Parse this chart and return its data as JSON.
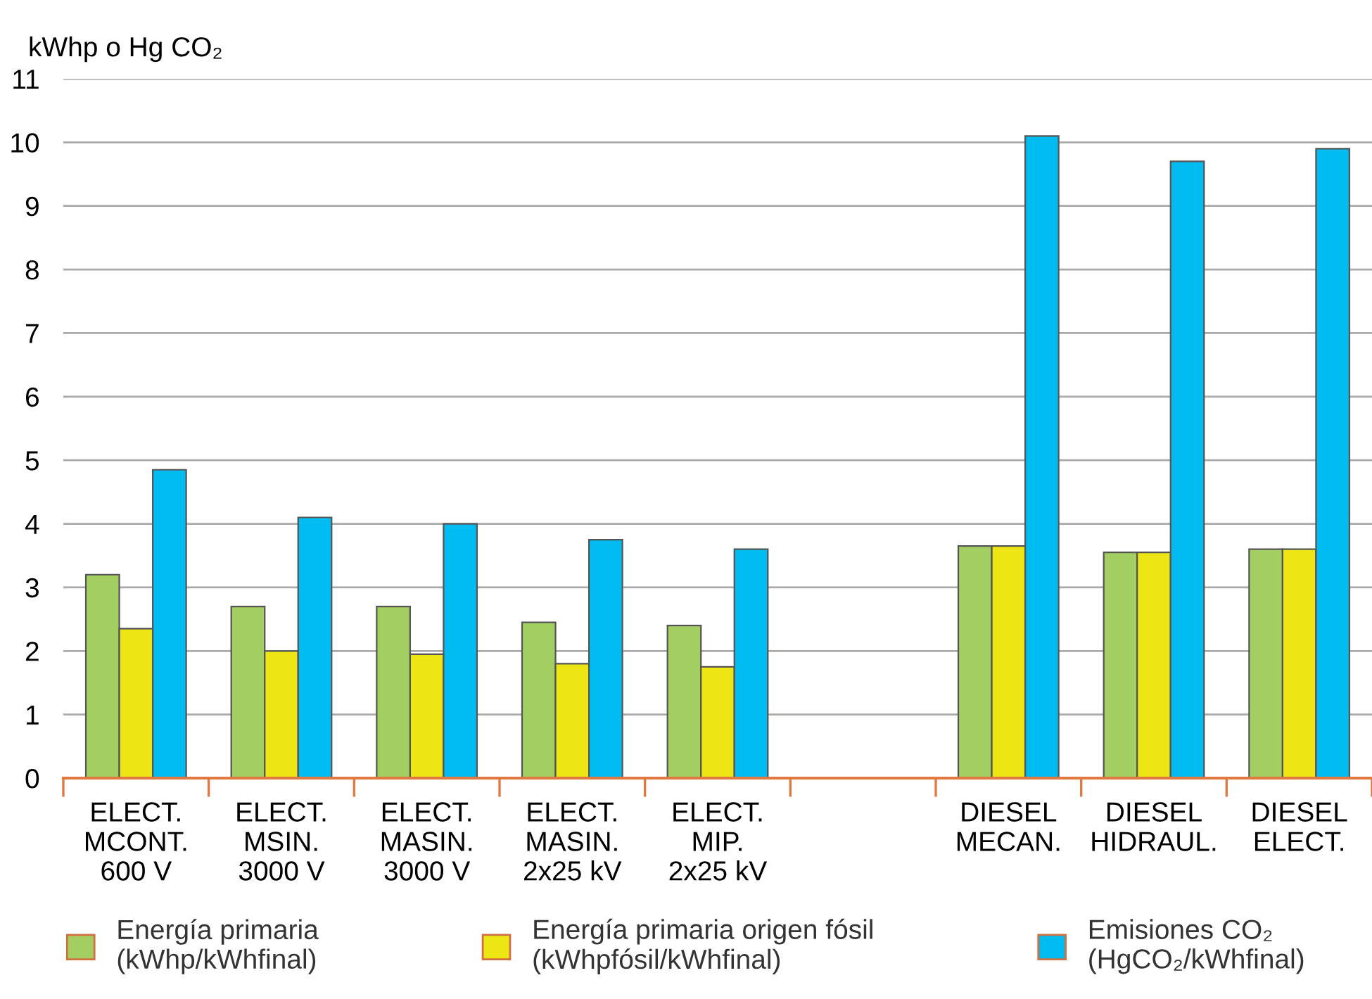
{
  "chart_data": {
    "type": "bar",
    "ylabel": "kWhp o Hg CO₂",
    "categories": [
      "ELECT.\nMCONT.\n600 V",
      "ELECT.\nMSIN.\n3000 V",
      "ELECT.\nMASIN.\n3000 V",
      "ELECT.\nMASIN.\n2x25 kV",
      "ELECT.\nMIP.\n2x25 kV",
      null,
      "DIESEL\nMECAN.",
      "DIESEL\nHIDRAUL.",
      "DIESEL\nELECT."
    ],
    "series": [
      {
        "name": "Energía primaria\n(kWhp/kWhfinal)",
        "color": "#a3cf62",
        "values": [
          3.2,
          2.7,
          2.7,
          2.45,
          2.4,
          null,
          3.65,
          3.55,
          3.6
        ]
      },
      {
        "name": "Energía primaria origen fósil\n(kWhpfósil/kWhfinal)",
        "color": "#ede614",
        "values": [
          2.35,
          2.0,
          1.95,
          1.8,
          1.75,
          null,
          3.65,
          3.55,
          3.6
        ]
      },
      {
        "name": "Emisiones CO₂\n(HgCO₂/kWhfinal)",
        "color": "#00bcf0",
        "values": [
          4.85,
          4.1,
          4.0,
          3.75,
          3.6,
          null,
          10.1,
          9.7,
          9.9
        ]
      }
    ],
    "ylim": [
      0,
      11
    ],
    "yticks": [
      0,
      1,
      2,
      3,
      4,
      5,
      6,
      7,
      8,
      9,
      10,
      11
    ],
    "grid": "y",
    "legend": "bottom"
  }
}
